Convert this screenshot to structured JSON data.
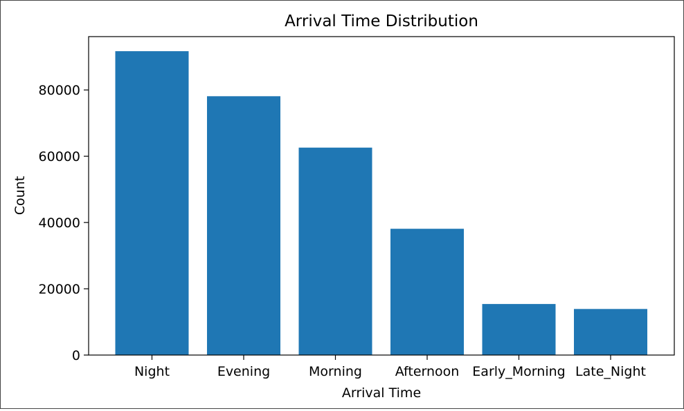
{
  "chart_data": {
    "type": "bar",
    "title": "Arrival Time Distribution",
    "xlabel": "Arrival Time",
    "ylabel": "Count",
    "categories": [
      "Night",
      "Evening",
      "Morning",
      "Afternoon",
      "Early_Morning",
      "Late_Night"
    ],
    "values": [
      91700,
      78100,
      62600,
      38100,
      15400,
      13900
    ],
    "ylim": [
      0,
      96100
    ],
    "yticks": [
      0,
      20000,
      40000,
      60000,
      80000
    ],
    "ytick_labels": [
      "0",
      "20000",
      "40000",
      "60000",
      "80000"
    ],
    "bar_color": "#1f77b4",
    "grid": false,
    "legend": "none"
  }
}
